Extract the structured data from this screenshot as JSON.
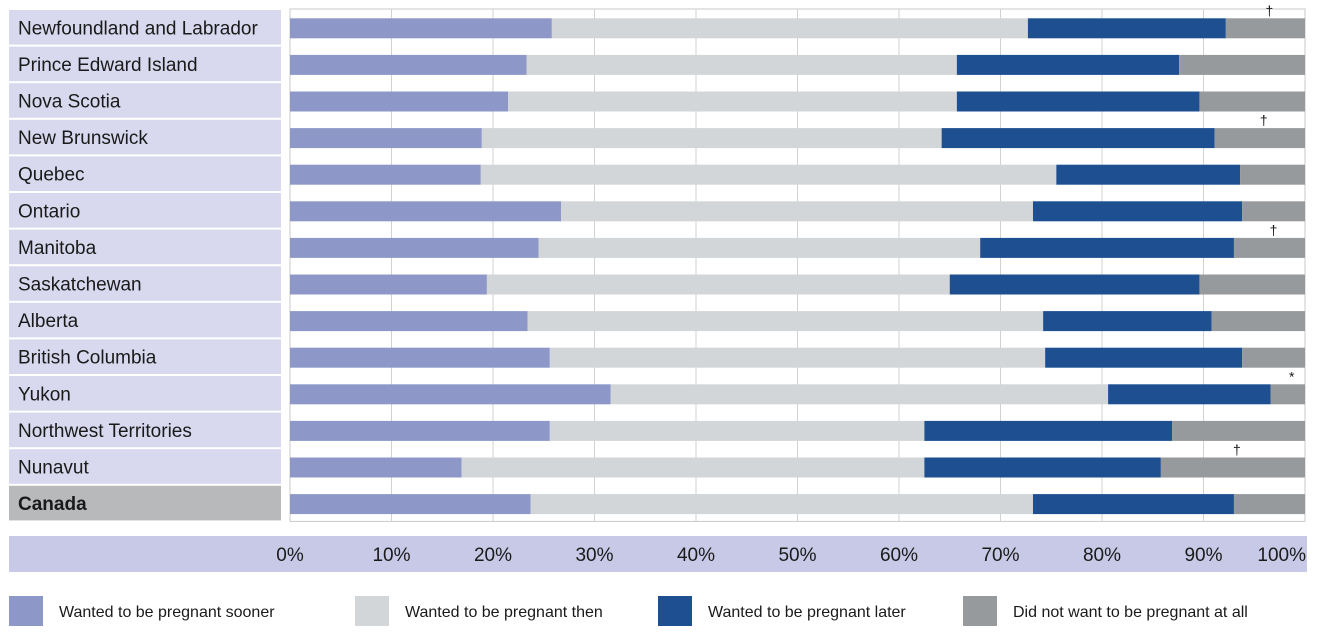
{
  "chart_data": {
    "type": "bar",
    "orientation": "horizontal",
    "stacked": true,
    "categories": [
      "Newfoundland and Labrador",
      "Prince Edward Island",
      "Nova Scotia",
      "New Brunswick",
      "Quebec",
      "Ontario",
      "Manitoba",
      "Saskatchewan",
      "Alberta",
      "British Columbia",
      "Yukon",
      "Northwest Territories",
      "Nunavut",
      "Canada"
    ],
    "highlighted_category": "Canada",
    "series": [
      {
        "name": "Wanted to be pregnant sooner",
        "color": "#8d98c9",
        "values": [
          25.8,
          23.3,
          21.5,
          18.9,
          18.8,
          26.7,
          24.5,
          19.4,
          23.4,
          25.6,
          31.6,
          25.6,
          16.9,
          23.7
        ]
      },
      {
        "name": "Wanted to be pregnant then",
        "color": "#d3d6d8",
        "values": [
          46.9,
          42.4,
          44.2,
          45.3,
          56.7,
          46.5,
          43.5,
          45.6,
          50.8,
          48.8,
          49.0,
          36.9,
          45.6,
          49.5
        ]
      },
      {
        "name": "Wanted to be pregnant later",
        "color": "#1d4f91",
        "values": [
          19.5,
          21.9,
          23.9,
          26.9,
          18.1,
          20.6,
          25.0,
          24.6,
          16.6,
          19.4,
          16.0,
          24.4,
          23.3,
          19.8
        ]
      },
      {
        "name": "Did not want to be pregnant at all",
        "color": "#979a9c",
        "values": [
          7.8,
          12.4,
          10.4,
          8.9,
          6.4,
          6.2,
          7.0,
          10.4,
          9.2,
          6.2,
          3.4,
          13.1,
          14.2,
          7.0
        ]
      }
    ],
    "annotations": [
      "†",
      "",
      "",
      "†",
      "",
      "",
      "†",
      "",
      "",
      "",
      "*",
      "",
      "†",
      ""
    ],
    "x_tick_labels": [
      "0%",
      "10%",
      "20%",
      "30%",
      "40%",
      "50%",
      "60%",
      "70%",
      "80%",
      "90%",
      "100%"
    ],
    "xlim": [
      0,
      100
    ],
    "grid": "vertical",
    "legend_position": "bottom"
  }
}
